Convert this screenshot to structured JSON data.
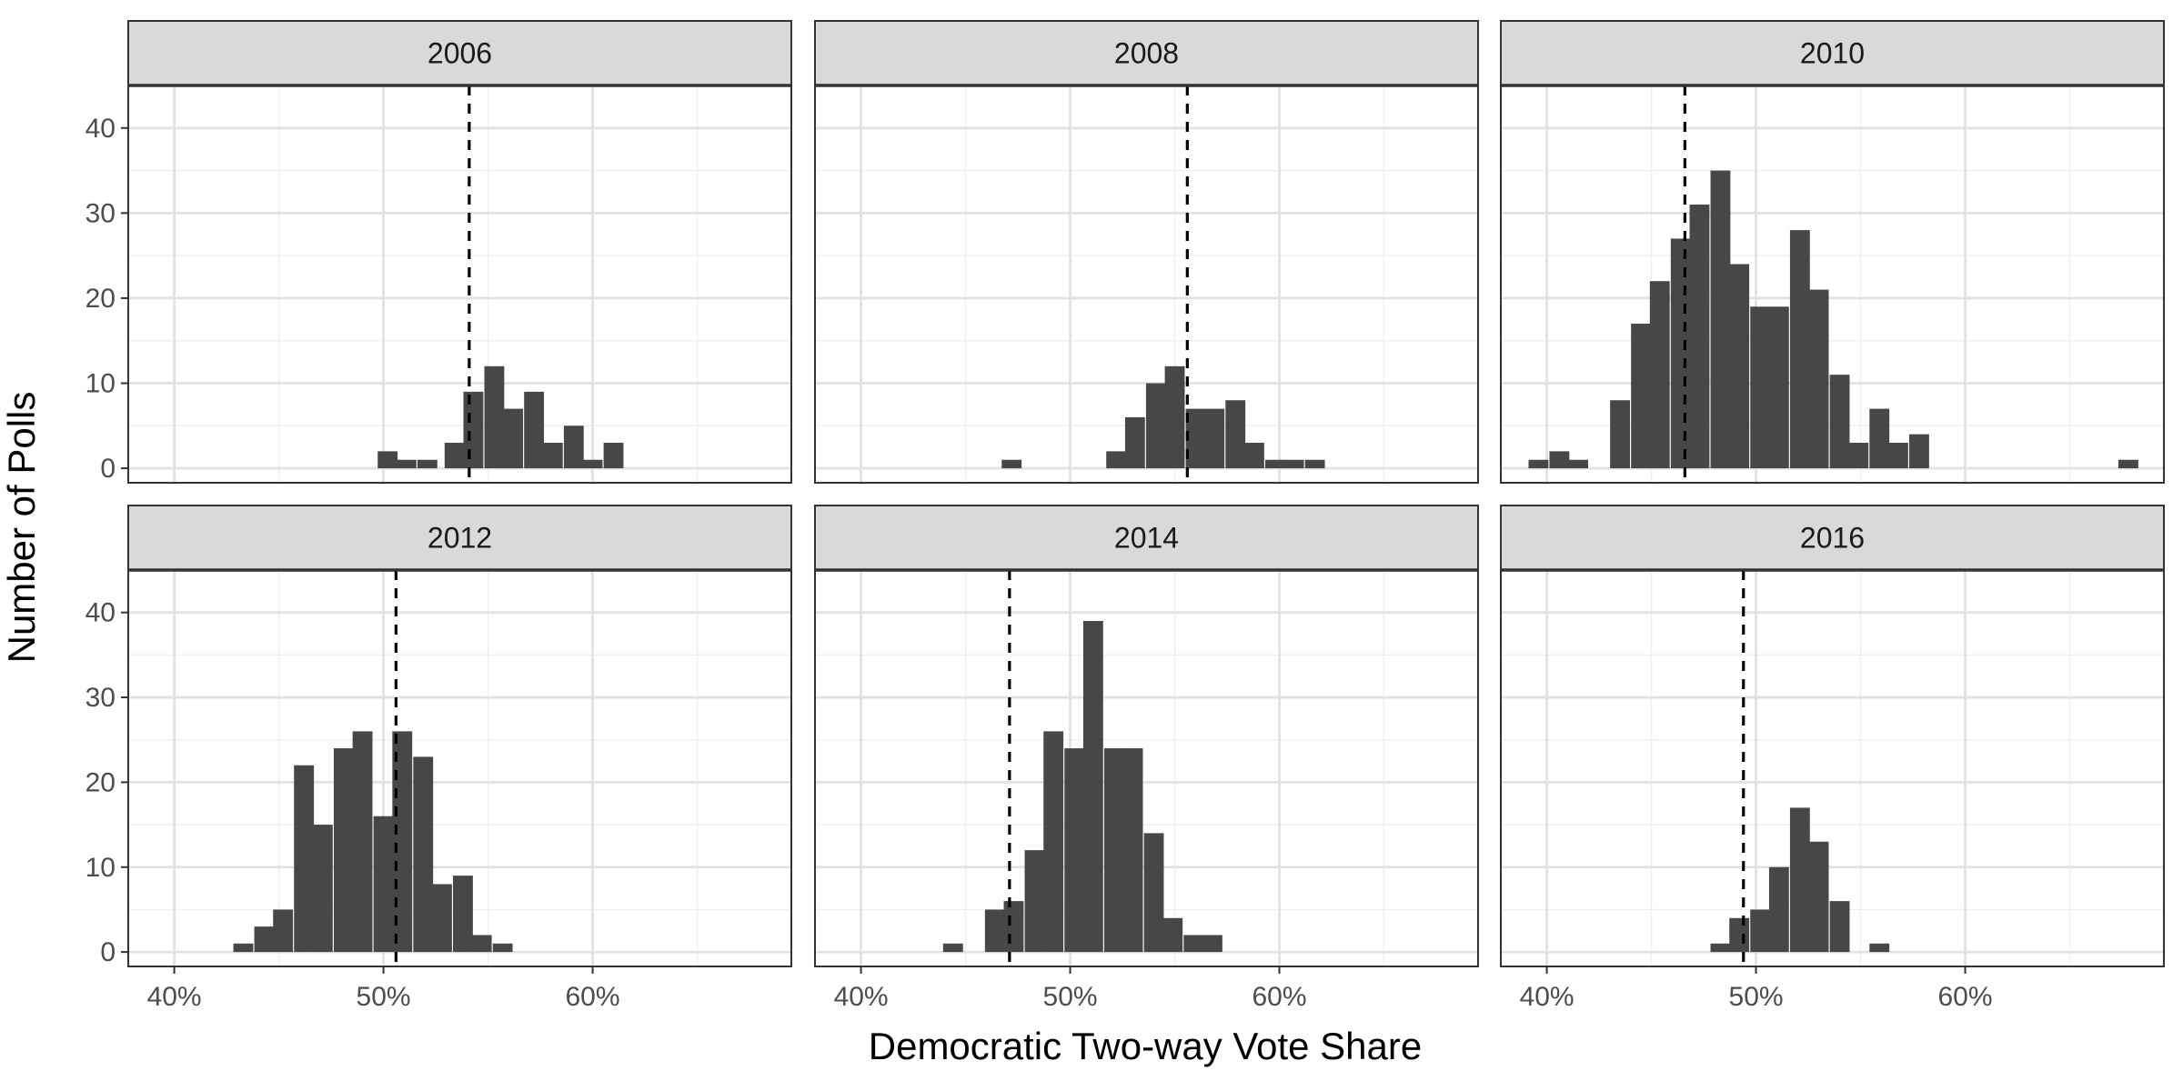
{
  "chart_data": {
    "type": "bar",
    "layout": "facet-wrap 2 rows x 3 columns, shared axes",
    "xlabel": "Democratic Two-way Vote Share",
    "ylabel": "Number of Polls",
    "xlim": [
      37.8,
      69.5
    ],
    "ylim": [
      -1.7,
      45
    ],
    "x_ticks": [
      40,
      50,
      60
    ],
    "x_tick_labels": [
      "40%",
      "50%",
      "60%"
    ],
    "y_ticks": [
      0,
      10,
      20,
      30,
      40
    ],
    "y_tick_labels": [
      "0",
      "10",
      "20",
      "30",
      "40"
    ],
    "bin_width": 0.95,
    "grid": true,
    "bar_color": "#474747",
    "reference_line_style": "dashed vertical line, black",
    "panels": [
      {
        "label": "2006",
        "reference_line": 54.1,
        "bins": [
          {
            "x": 50.2,
            "count": 2
          },
          {
            "x": 51.1,
            "count": 1
          },
          {
            "x": 52.1,
            "count": 1
          },
          {
            "x": 53.4,
            "count": 3
          },
          {
            "x": 54.3,
            "count": 9
          },
          {
            "x": 55.3,
            "count": 12
          },
          {
            "x": 56.2,
            "count": 7
          },
          {
            "x": 57.2,
            "count": 9
          },
          {
            "x": 58.1,
            "count": 3
          },
          {
            "x": 59.1,
            "count": 5
          },
          {
            "x": 60.0,
            "count": 1
          },
          {
            "x": 61.0,
            "count": 3
          }
        ]
      },
      {
        "label": "2008",
        "reference_line": 55.6,
        "bins": [
          {
            "x": 47.2,
            "count": 1
          },
          {
            "x": 52.2,
            "count": 2
          },
          {
            "x": 53.1,
            "count": 6
          },
          {
            "x": 54.1,
            "count": 10
          },
          {
            "x": 55.0,
            "count": 12
          },
          {
            "x": 56.0,
            "count": 7
          },
          {
            "x": 56.9,
            "count": 7
          },
          {
            "x": 57.9,
            "count": 8
          },
          {
            "x": 58.8,
            "count": 3
          },
          {
            "x": 59.8,
            "count": 1
          },
          {
            "x": 60.7,
            "count": 1
          },
          {
            "x": 61.7,
            "count": 1
          }
        ]
      },
      {
        "label": "2010",
        "reference_line": 46.6,
        "bins": [
          {
            "x": 39.6,
            "count": 1
          },
          {
            "x": 40.6,
            "count": 2
          },
          {
            "x": 41.5,
            "count": 1
          },
          {
            "x": 43.5,
            "count": 8
          },
          {
            "x": 44.5,
            "count": 17
          },
          {
            "x": 45.4,
            "count": 22
          },
          {
            "x": 46.4,
            "count": 27
          },
          {
            "x": 47.3,
            "count": 31
          },
          {
            "x": 48.3,
            "count": 35
          },
          {
            "x": 49.2,
            "count": 24
          },
          {
            "x": 50.2,
            "count": 19
          },
          {
            "x": 51.1,
            "count": 19
          },
          {
            "x": 52.1,
            "count": 28
          },
          {
            "x": 53.0,
            "count": 21
          },
          {
            "x": 54.0,
            "count": 11
          },
          {
            "x": 54.9,
            "count": 3
          },
          {
            "x": 55.9,
            "count": 7
          },
          {
            "x": 56.8,
            "count": 3
          },
          {
            "x": 57.8,
            "count": 4
          },
          {
            "x": 67.8,
            "count": 1
          }
        ]
      },
      {
        "label": "2012",
        "reference_line": 50.6,
        "bins": [
          {
            "x": 43.3,
            "count": 1
          },
          {
            "x": 44.3,
            "count": 3
          },
          {
            "x": 45.2,
            "count": 5
          },
          {
            "x": 46.2,
            "count": 22
          },
          {
            "x": 47.1,
            "count": 15
          },
          {
            "x": 48.1,
            "count": 24
          },
          {
            "x": 49.0,
            "count": 26
          },
          {
            "x": 50.0,
            "count": 16
          },
          {
            "x": 50.9,
            "count": 26
          },
          {
            "x": 51.9,
            "count": 23
          },
          {
            "x": 52.8,
            "count": 8
          },
          {
            "x": 53.8,
            "count": 9
          },
          {
            "x": 54.7,
            "count": 2
          },
          {
            "x": 55.7,
            "count": 1
          }
        ]
      },
      {
        "label": "2014",
        "reference_line": 47.1,
        "bins": [
          {
            "x": 44.4,
            "count": 1
          },
          {
            "x": 46.4,
            "count": 5
          },
          {
            "x": 47.3,
            "count": 6
          },
          {
            "x": 48.3,
            "count": 12
          },
          {
            "x": 49.2,
            "count": 26
          },
          {
            "x": 50.2,
            "count": 24
          },
          {
            "x": 51.1,
            "count": 39
          },
          {
            "x": 52.1,
            "count": 24
          },
          {
            "x": 53.0,
            "count": 24
          },
          {
            "x": 54.0,
            "count": 14
          },
          {
            "x": 54.9,
            "count": 4
          },
          {
            "x": 55.9,
            "count": 2
          },
          {
            "x": 56.8,
            "count": 2
          }
        ]
      },
      {
        "label": "2016",
        "reference_line": 49.4,
        "bins": [
          {
            "x": 48.3,
            "count": 1
          },
          {
            "x": 49.2,
            "count": 4
          },
          {
            "x": 50.2,
            "count": 5
          },
          {
            "x": 51.1,
            "count": 10
          },
          {
            "x": 52.1,
            "count": 17
          },
          {
            "x": 53.0,
            "count": 13
          },
          {
            "x": 54.0,
            "count": 6
          },
          {
            "x": 55.9,
            "count": 1
          }
        ]
      }
    ]
  }
}
